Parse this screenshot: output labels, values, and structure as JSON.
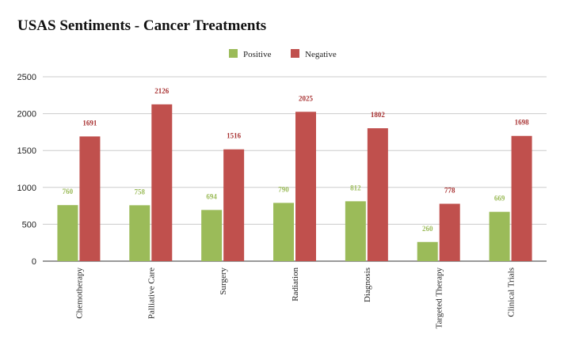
{
  "chart_data": {
    "type": "bar",
    "title": "USAS Sentiments - Cancer Treatments",
    "xlabel": "",
    "ylabel": "",
    "categories": [
      "Chemotherapy",
      "Palliative Care",
      "Surgery",
      "Radiation",
      "Diagnosis",
      "Targeted Therapy",
      "Clinical Trials"
    ],
    "series": [
      {
        "name": "Positive",
        "color": "#9bbb59",
        "label_color": "#9bbb59",
        "values": [
          760,
          758,
          694,
          790,
          812,
          260,
          669
        ]
      },
      {
        "name": "Negative",
        "color": "#c0504d",
        "label_color": "#a83232",
        "values": [
          1691,
          2126,
          1516,
          2025,
          1802,
          778,
          1698
        ]
      }
    ],
    "ylim": [
      0,
      2500
    ],
    "yticks": [
      0,
      500,
      1000,
      1500,
      2000,
      2500
    ],
    "grid": true,
    "legend_position": "top-center",
    "data_labels": true
  }
}
